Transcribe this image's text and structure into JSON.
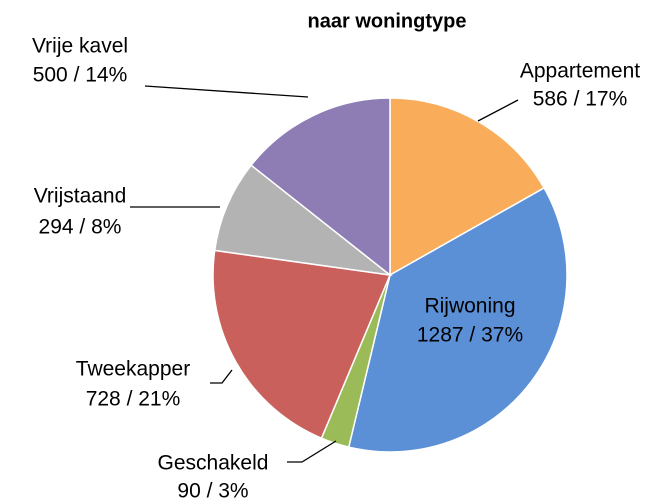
{
  "chart_data": {
    "type": "pie",
    "title": "naar woningtype",
    "categories": [
      "Appartement",
      "Rijwoning",
      "Geschakeld",
      "Tweekapper",
      "Vrijstaand",
      "Vrije kavel"
    ],
    "values": [
      586,
      1287,
      90,
      728,
      294,
      500
    ],
    "value_labels": [
      "586 / 17%",
      "1287 / 37%",
      "90 / 3%",
      "728 / 21%",
      "294 / 8%",
      "500 / 14%"
    ],
    "colors": [
      "#f9ad5b",
      "#5b8fd6",
      "#9bbb59",
      "#c9605c",
      "#b3b3b3",
      "#8e7cb5"
    ]
  }
}
